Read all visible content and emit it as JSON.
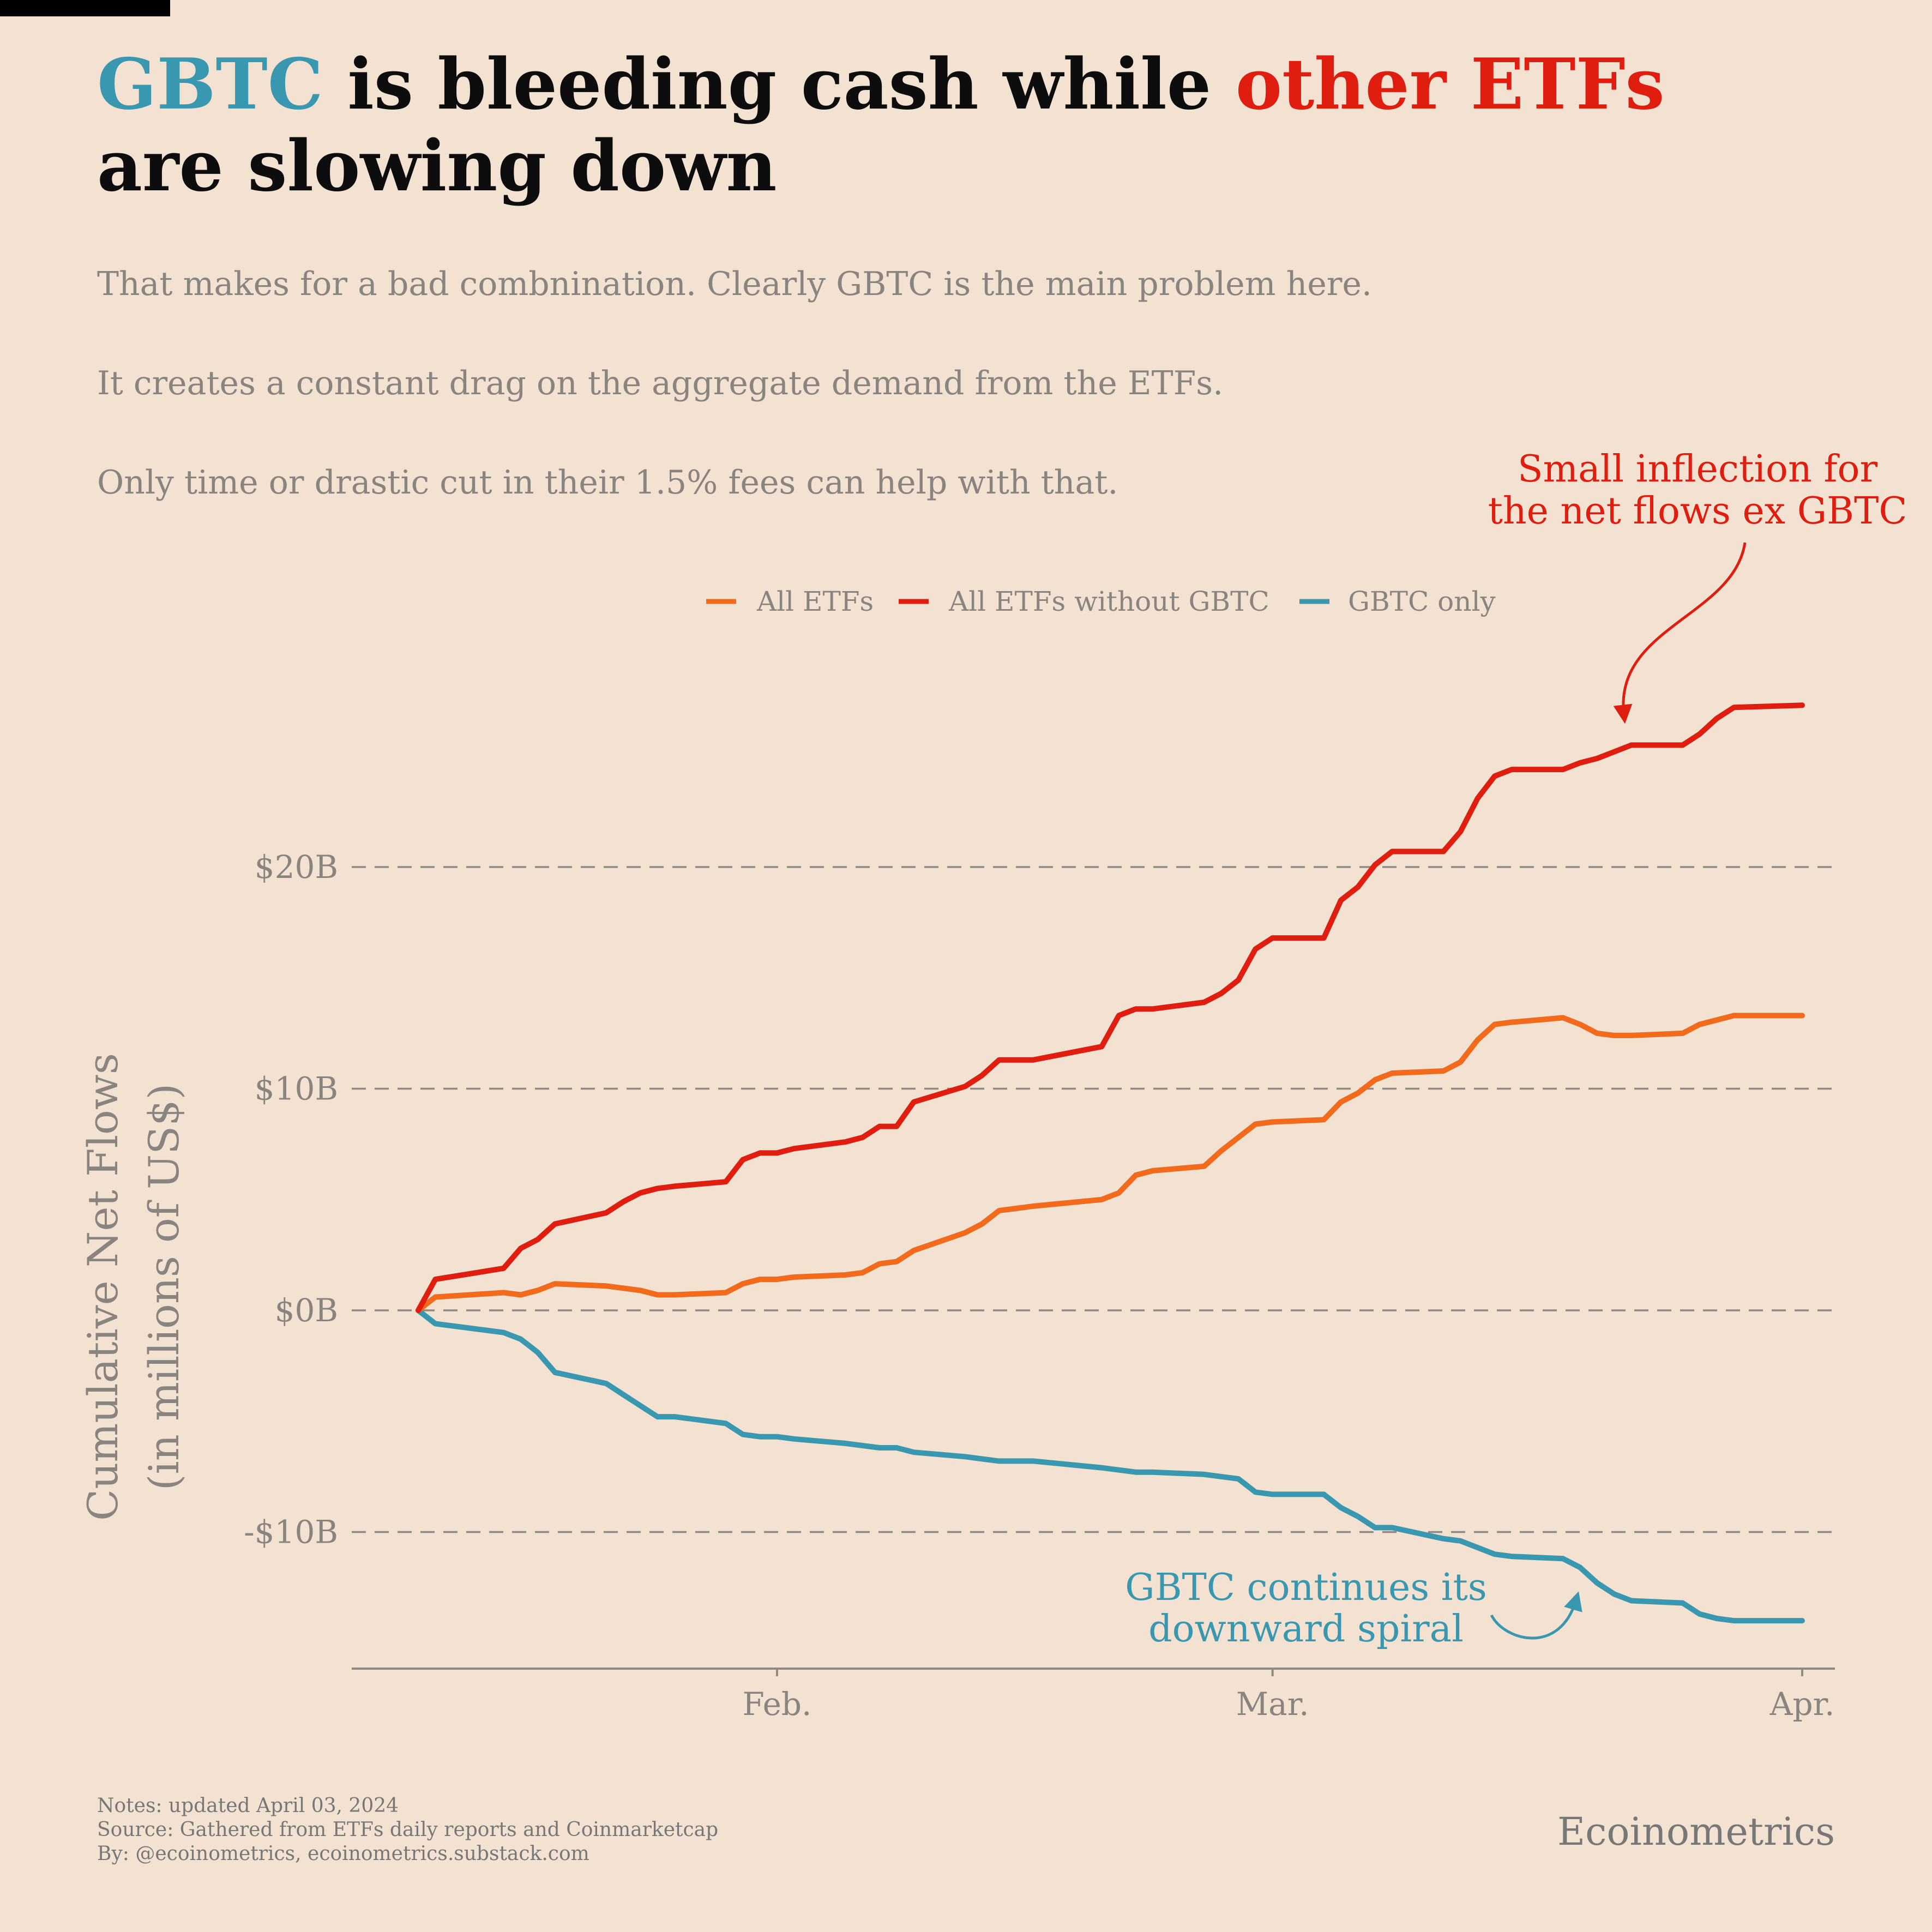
{
  "title": {
    "part1": "GBTC",
    "part2": " is bleeding cash while ",
    "part3": "other ETFs",
    "line2": "are slowing down"
  },
  "subtitle_lines": [
    "That makes for a bad combnination. Clearly GBTC is the main problem here.",
    "It creates a constant drag on the aggregate demand from the ETFs.",
    "Only time or drastic cut in their 1.5% fees can help with that."
  ],
  "annotations": {
    "red": [
      "Small inflection for",
      "the net flows ex GBTC"
    ],
    "blue": [
      "GBTC continues its",
      "downward spiral"
    ]
  },
  "notes": [
    "Notes: updated April 03, 2024",
    "Source: Gathered from ETFs daily reports and Coinmarketcap",
    "By: @ecoinometrics, ecoinometrics.substack.com"
  ],
  "brand": "Ecoinometrics",
  "colors": {
    "all_etfs": "#f26a1b",
    "ex_gbtc": "#e01e10",
    "gbtc": "#3a97b0",
    "background": "#f3e1d1"
  },
  "chart_data": {
    "type": "line",
    "ylabel": [
      "Cumulative Net Flows",
      "(in millions of US$)"
    ],
    "xlabel": "",
    "ylim": [
      -16,
      36
    ],
    "yticks": [
      -10,
      0,
      10,
      20
    ],
    "ytick_labels": [
      "-$10B",
      "$0B",
      "$10B",
      "$20B"
    ],
    "xlim": [
      "2024-01-08",
      "2024-04-02"
    ],
    "xticks": [
      "2024-02-01",
      "2024-03-01",
      "2024-04-01"
    ],
    "xtick_labels": [
      "Feb.",
      "Mar.",
      "Apr."
    ],
    "grid": "horizontal dashed",
    "legend_position": "top-center",
    "x": [
      "2024-01-11",
      "2024-01-12",
      "2024-01-16",
      "2024-01-17",
      "2024-01-18",
      "2024-01-19",
      "2024-01-22",
      "2024-01-23",
      "2024-01-24",
      "2024-01-25",
      "2024-01-26",
      "2024-01-29",
      "2024-01-30",
      "2024-01-31",
      "2024-02-01",
      "2024-02-02",
      "2024-02-05",
      "2024-02-06",
      "2024-02-07",
      "2024-02-08",
      "2024-02-09",
      "2024-02-12",
      "2024-02-13",
      "2024-02-14",
      "2024-02-15",
      "2024-02-16",
      "2024-02-20",
      "2024-02-21",
      "2024-02-22",
      "2024-02-23",
      "2024-02-26",
      "2024-02-27",
      "2024-02-28",
      "2024-02-29",
      "2024-03-01",
      "2024-03-04",
      "2024-03-05",
      "2024-03-06",
      "2024-03-07",
      "2024-03-08",
      "2024-03-11",
      "2024-03-12",
      "2024-03-13",
      "2024-03-14",
      "2024-03-15",
      "2024-03-18",
      "2024-03-19",
      "2024-03-20",
      "2024-03-21",
      "2024-03-22",
      "2024-03-25",
      "2024-03-26",
      "2024-03-27",
      "2024-03-28",
      "2024-04-01"
    ],
    "series": [
      {
        "name": "All ETFs",
        "values": [
          0,
          0.6,
          0.8,
          0.7,
          0.9,
          1.2,
          1.1,
          1.0,
          0.9,
          0.7,
          0.7,
          0.8,
          1.2,
          1.4,
          1.4,
          1.5,
          1.6,
          1.7,
          2.1,
          2.2,
          2.7,
          3.5,
          3.9,
          4.5,
          4.6,
          4.7,
          5.0,
          5.3,
          6.1,
          6.3,
          6.5,
          7.2,
          7.8,
          8.4,
          8.5,
          8.6,
          9.4,
          9.8,
          10.4,
          10.7,
          10.8,
          11.2,
          12.2,
          12.9,
          13.0,
          13.2,
          12.9,
          12.5,
          12.4,
          12.4,
          12.5,
          12.9,
          13.1,
          13.3,
          13.3
        ]
      },
      {
        "name": "All ETFs without GBTC",
        "values": [
          0,
          1.4,
          1.9,
          2.8,
          3.2,
          3.9,
          4.4,
          4.9,
          5.3,
          5.5,
          5.6,
          5.8,
          6.8,
          7.1,
          7.1,
          7.3,
          7.6,
          7.8,
          8.3,
          8.3,
          9.4,
          10.1,
          10.6,
          11.3,
          11.3,
          11.3,
          11.9,
          13.3,
          13.6,
          13.6,
          13.9,
          14.3,
          14.9,
          16.3,
          16.8,
          16.8,
          18.5,
          19.1,
          20.1,
          20.7,
          20.7,
          21.6,
          23.1,
          24.1,
          24.4,
          24.4,
          24.7,
          24.9,
          25.2,
          25.5,
          25.5,
          26.0,
          26.7,
          27.2,
          27.3
        ]
      },
      {
        "name": "GBTC only",
        "values": [
          0,
          -0.6,
          -1.0,
          -1.3,
          -1.9,
          -2.8,
          -3.3,
          -3.8,
          -4.3,
          -4.8,
          -4.8,
          -5.1,
          -5.6,
          -5.7,
          -5.7,
          -5.8,
          -6.0,
          -6.1,
          -6.2,
          -6.2,
          -6.4,
          -6.6,
          -6.7,
          -6.8,
          -6.8,
          -6.8,
          -7.1,
          -7.2,
          -7.3,
          -7.3,
          -7.4,
          -7.5,
          -7.6,
          -8.2,
          -8.3,
          -8.3,
          -8.9,
          -9.3,
          -9.8,
          -9.8,
          -10.3,
          -10.4,
          -10.7,
          -11.0,
          -11.1,
          -11.2,
          -11.6,
          -12.3,
          -12.8,
          -13.1,
          -13.2,
          -13.7,
          -13.9,
          -14.0,
          -14.0
        ]
      }
    ]
  }
}
